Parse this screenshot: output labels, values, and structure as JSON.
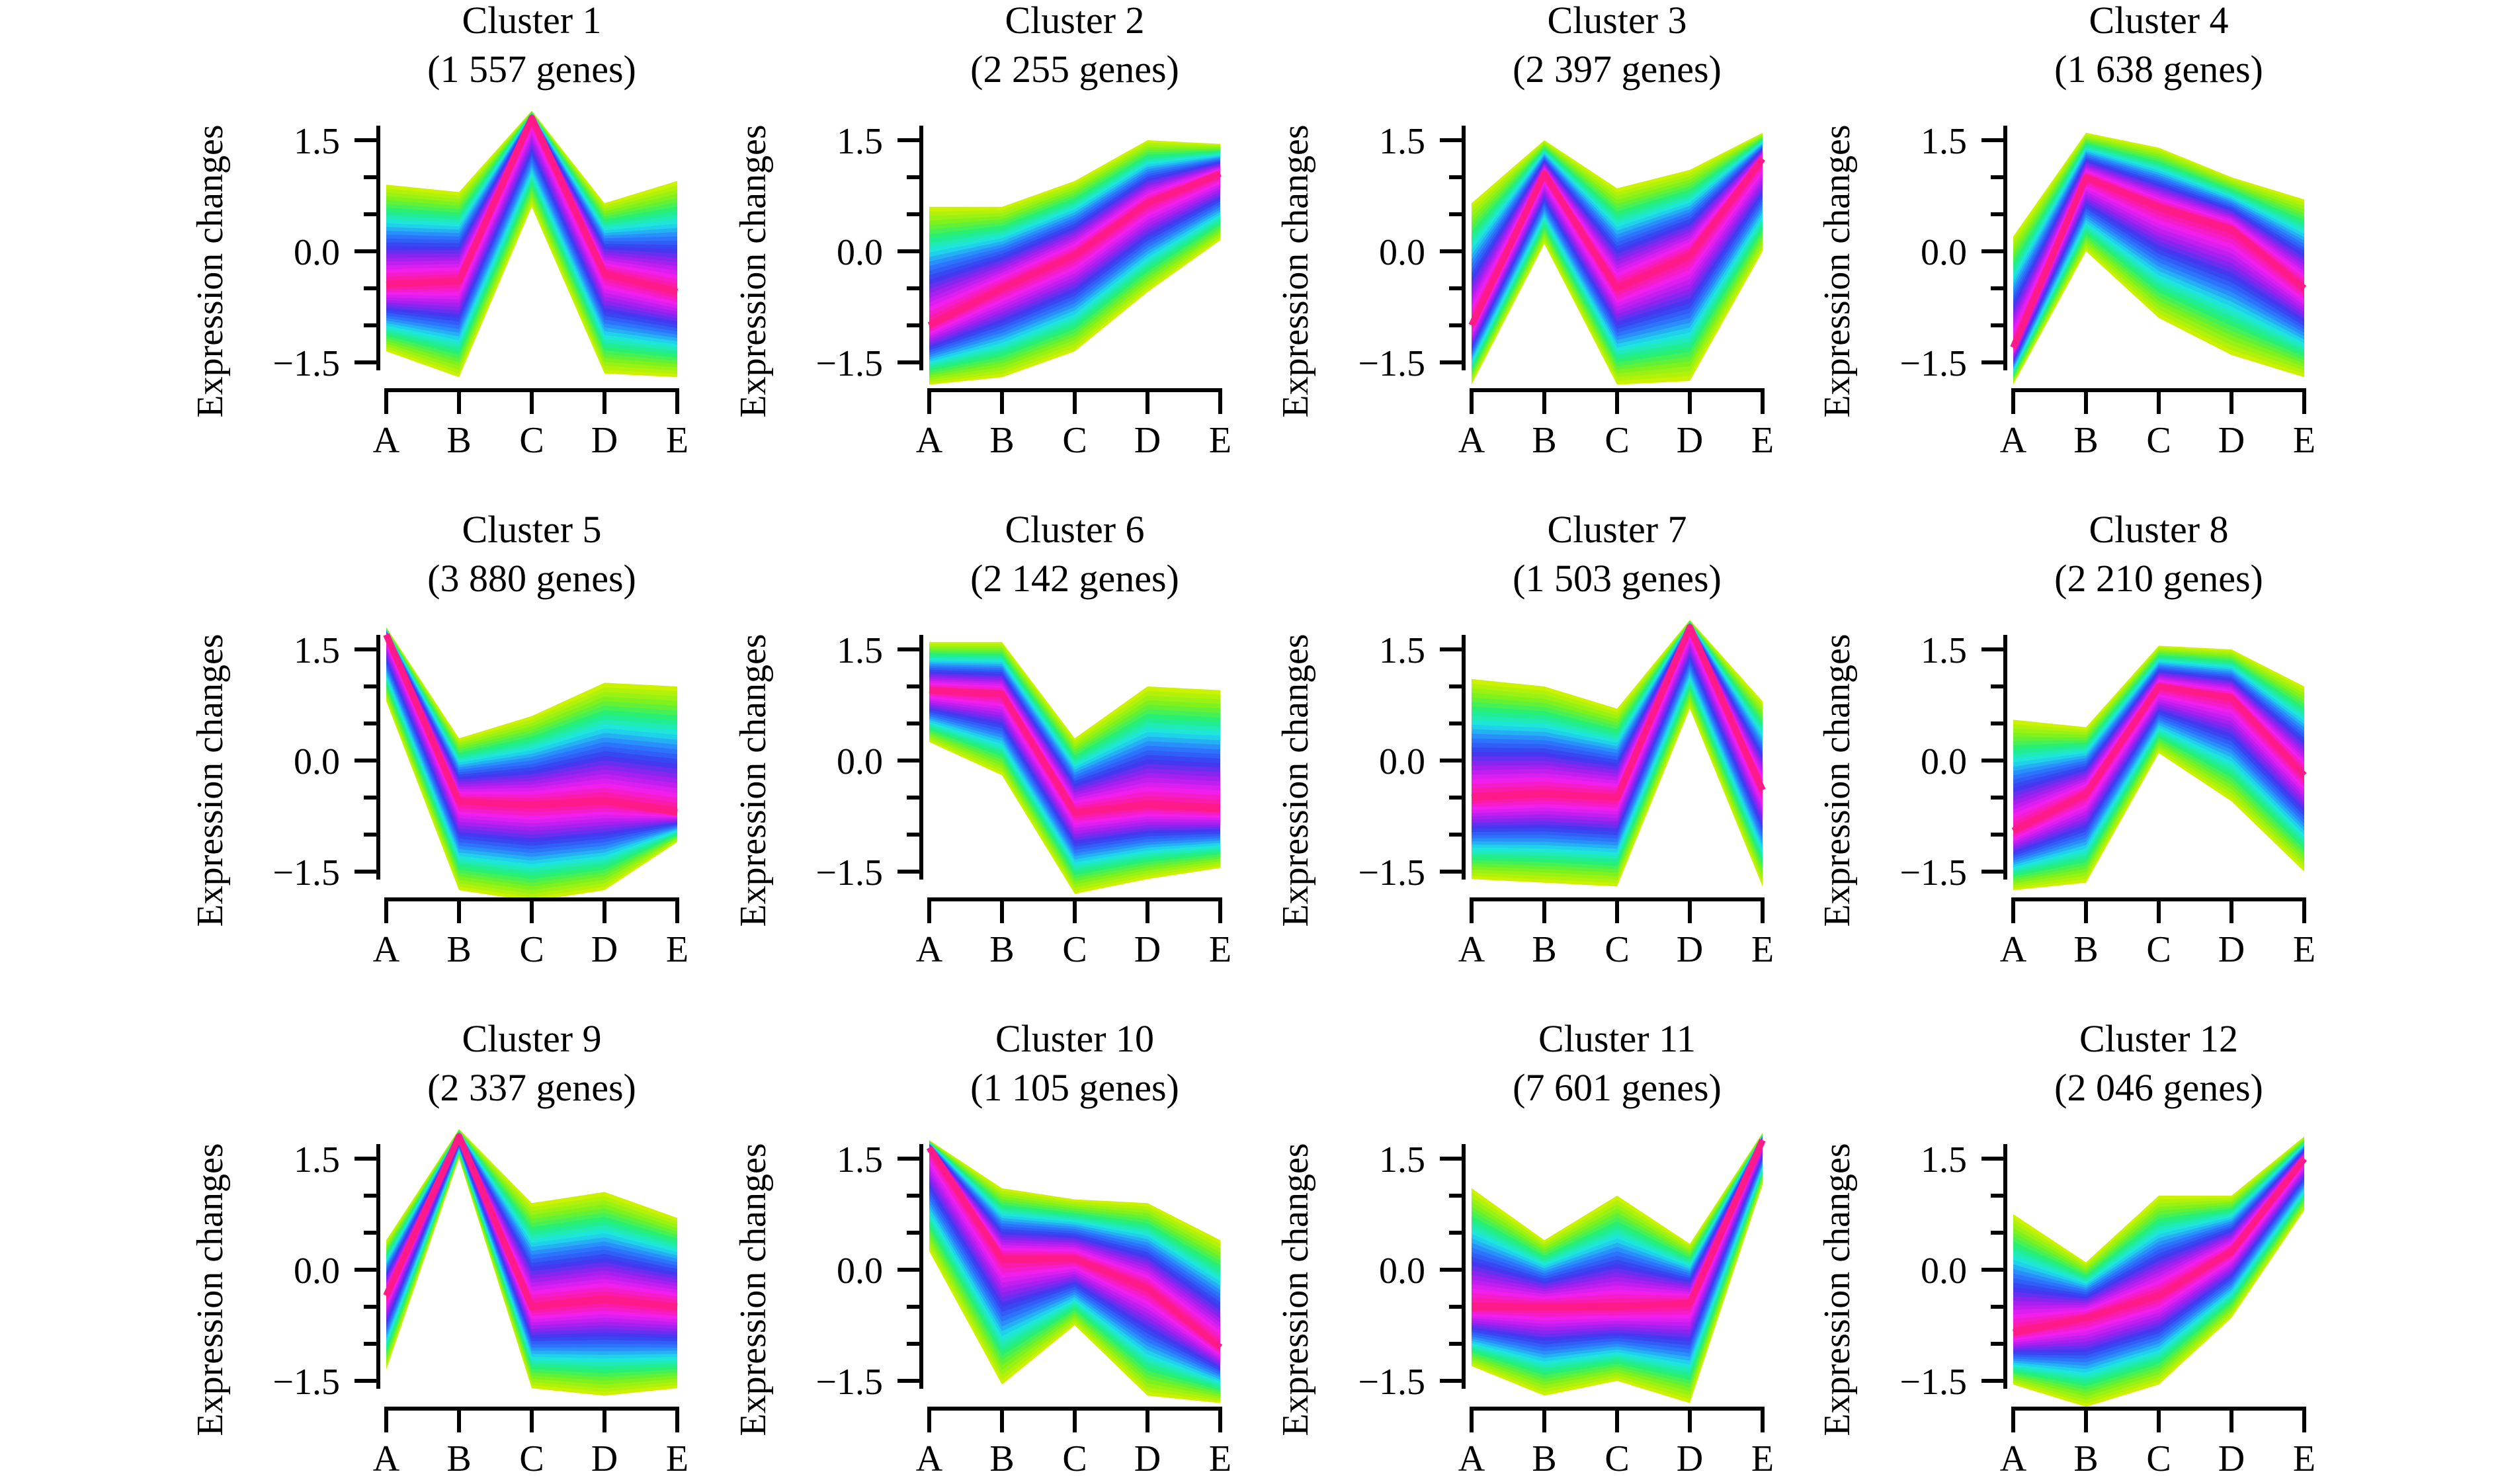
{
  "figure": {
    "ylabel": "Expression changes",
    "palette_low_to_high_membership": [
      "#ccf200",
      "#7cf21f",
      "#22f07a",
      "#1ee6e6",
      "#2a7fff",
      "#3a3af0",
      "#a020f0",
      "#f01ef0",
      "#ff1a8a"
    ]
  },
  "chart_data": [
    {
      "type": "line",
      "title": "Cluster 1",
      "subtitle": "(1 557 genes)",
      "categories": [
        "A",
        "B",
        "C",
        "D",
        "E"
      ],
      "ylim": [
        -1.5,
        1.5
      ],
      "yticks": [
        -1.5,
        0.0,
        1.5
      ],
      "ytick_labels": [
        "−1.5",
        "0.0",
        "1.5"
      ],
      "ylabel": "Expression changes",
      "series": [
        {
          "values": [
            -0.45,
            -0.4,
            1.8,
            -0.3,
            -0.55
          ]
        }
      ],
      "spread_above": [
        1.35,
        1.2,
        0.1,
        0.95,
        1.5
      ],
      "spread_below": [
        0.9,
        1.3,
        1.2,
        1.35,
        1.15
      ],
      "grid": false,
      "legend": "none"
    },
    {
      "type": "line",
      "title": "Cluster 2",
      "subtitle": "(2 255 genes)",
      "categories": [
        "A",
        "B",
        "C",
        "D",
        "E"
      ],
      "ylim": [
        -1.5,
        1.5
      ],
      "yticks": [
        -1.5,
        0.0,
        1.5
      ],
      "ytick_labels": [
        "−1.5",
        "0.0",
        "1.5"
      ],
      "ylabel": "Expression changes",
      "series": [
        {
          "values": [
            -1.0,
            -0.5,
            -0.05,
            0.65,
            1.05
          ]
        }
      ],
      "spread_above": [
        1.6,
        1.1,
        1.0,
        0.85,
        0.4
      ],
      "spread_below": [
        0.8,
        1.2,
        1.3,
        1.2,
        0.9
      ],
      "grid": false,
      "legend": "none"
    },
    {
      "type": "line",
      "title": "Cluster 3",
      "subtitle": "(2 397 genes)",
      "categories": [
        "A",
        "B",
        "C",
        "D",
        "E"
      ],
      "ylim": [
        -1.5,
        1.5
      ],
      "yticks": [
        -1.5,
        0.0,
        1.5
      ],
      "ytick_labels": [
        "−1.5",
        "0.0",
        "1.5"
      ],
      "ylabel": "Expression changes",
      "series": [
        {
          "values": [
            -1.0,
            1.05,
            -0.5,
            -0.05,
            1.25
          ]
        }
      ],
      "spread_above": [
        1.65,
        0.45,
        1.35,
        1.15,
        0.35
      ],
      "spread_below": [
        0.8,
        0.95,
        1.3,
        1.7,
        1.25
      ],
      "grid": false,
      "legend": "none"
    },
    {
      "type": "line",
      "title": "Cluster 4",
      "subtitle": "(1 638 genes)",
      "categories": [
        "A",
        "B",
        "C",
        "D",
        "E"
      ],
      "ylim": [
        -1.5,
        1.5
      ],
      "yticks": [
        -1.5,
        0.0,
        1.5
      ],
      "ytick_labels": [
        "−1.5",
        "0.0",
        "1.5"
      ],
      "ylabel": "Expression changes",
      "series": [
        {
          "values": [
            -1.3,
            1.0,
            0.6,
            0.3,
            -0.5
          ]
        }
      ],
      "spread_above": [
        1.5,
        0.6,
        0.8,
        0.7,
        1.2
      ],
      "spread_below": [
        0.5,
        1.0,
        1.5,
        1.7,
        1.2
      ],
      "grid": false,
      "legend": "none"
    },
    {
      "type": "line",
      "title": "Cluster 5",
      "subtitle": "(3 880 genes)",
      "categories": [
        "A",
        "B",
        "C",
        "D",
        "E"
      ],
      "ylim": [
        -1.5,
        1.5
      ],
      "yticks": [
        -1.5,
        0.0,
        1.5
      ],
      "ytick_labels": [
        "−1.5",
        "0.0",
        "1.5"
      ],
      "ylabel": "Expression changes",
      "series": [
        {
          "values": [
            1.7,
            -0.55,
            -0.6,
            -0.55,
            -0.7
          ]
        }
      ],
      "spread_above": [
        0.1,
        0.85,
        1.2,
        1.6,
        1.7
      ],
      "spread_below": [
        0.9,
        1.2,
        1.3,
        1.2,
        0.4
      ],
      "grid": false,
      "legend": "none"
    },
    {
      "type": "line",
      "title": "Cluster 6",
      "subtitle": "(2 142 genes)",
      "categories": [
        "A",
        "B",
        "C",
        "D",
        "E"
      ],
      "ylim": [
        -1.5,
        1.5
      ],
      "yticks": [
        -1.5,
        0.0,
        1.5
      ],
      "ytick_labels": [
        "−1.5",
        "0.0",
        "1.5"
      ],
      "ylabel": "Expression changes",
      "series": [
        {
          "values": [
            0.95,
            0.9,
            -0.7,
            -0.6,
            -0.65
          ]
        }
      ],
      "spread_above": [
        0.65,
        0.7,
        1.0,
        1.6,
        1.6
      ],
      "spread_below": [
        0.7,
        1.1,
        1.1,
        1.0,
        0.8
      ],
      "grid": false,
      "legend": "none"
    },
    {
      "type": "line",
      "title": "Cluster 7",
      "subtitle": "(1 503 genes)",
      "categories": [
        "A",
        "B",
        "C",
        "D",
        "E"
      ],
      "ylim": [
        -1.5,
        1.5
      ],
      "yticks": [
        -1.5,
        0.0,
        1.5
      ],
      "ytick_labels": [
        "−1.5",
        "0.0",
        "1.5"
      ],
      "ylabel": "Expression changes",
      "series": [
        {
          "values": [
            -0.5,
            -0.45,
            -0.5,
            1.8,
            -0.4
          ]
        }
      ],
      "spread_above": [
        1.6,
        1.45,
        1.2,
        0.1,
        1.2
      ],
      "spread_below": [
        1.1,
        1.2,
        1.2,
        1.1,
        1.3
      ],
      "grid": false,
      "legend": "none"
    },
    {
      "type": "line",
      "title": "Cluster 8",
      "subtitle": "(2 210 genes)",
      "categories": [
        "A",
        "B",
        "C",
        "D",
        "E"
      ],
      "ylim": [
        -1.5,
        1.5
      ],
      "yticks": [
        -1.5,
        0.0,
        1.5
      ],
      "ytick_labels": [
        "−1.5",
        "0.0",
        "1.5"
      ],
      "ylabel": "Expression changes",
      "series": [
        {
          "values": [
            -0.95,
            -0.45,
            1.0,
            0.85,
            -0.2
          ]
        }
      ],
      "spread_above": [
        1.5,
        0.9,
        0.55,
        0.65,
        1.2
      ],
      "spread_below": [
        0.8,
        1.2,
        0.9,
        1.4,
        1.3
      ],
      "grid": false,
      "legend": "none"
    },
    {
      "type": "line",
      "title": "Cluster 9",
      "subtitle": "(2 337 genes)",
      "categories": [
        "A",
        "B",
        "C",
        "D",
        "E"
      ],
      "ylim": [
        -1.5,
        1.5
      ],
      "yticks": [
        -1.5,
        0.0,
        1.5
      ],
      "ytick_labels": [
        "−1.5",
        "0.0",
        "1.5"
      ],
      "ylabel": "Expression changes",
      "series": [
        {
          "values": [
            -0.35,
            1.8,
            -0.5,
            -0.4,
            -0.5
          ]
        }
      ],
      "spread_above": [
        0.75,
        0.1,
        1.4,
        1.45,
        1.2
      ],
      "spread_below": [
        1.0,
        0.3,
        1.1,
        1.3,
        1.1
      ],
      "grid": false,
      "legend": "none"
    },
    {
      "type": "line",
      "title": "Cluster 10",
      "subtitle": "(1 105 genes)",
      "categories": [
        "A",
        "B",
        "C",
        "D",
        "E"
      ],
      "ylim": [
        -1.5,
        1.5
      ],
      "yticks": [
        -1.5,
        0.0,
        1.5
      ],
      "ytick_labels": [
        "−1.5",
        "0.0",
        "1.5"
      ],
      "ylabel": "Expression changes",
      "series": [
        {
          "values": [
            1.65,
            0.15,
            0.15,
            -0.25,
            -1.05
          ]
        }
      ],
      "spread_above": [
        0.1,
        0.95,
        0.8,
        1.15,
        1.45
      ],
      "spread_below": [
        1.4,
        1.7,
        0.9,
        1.45,
        0.75
      ],
      "grid": false,
      "legend": "none"
    },
    {
      "type": "line",
      "title": "Cluster 11",
      "subtitle": "(7 601 genes)",
      "categories": [
        "A",
        "B",
        "C",
        "D",
        "E"
      ],
      "ylim": [
        -1.5,
        1.5
      ],
      "yticks": [
        -1.5,
        0.0,
        1.5
      ],
      "ytick_labels": [
        "−1.5",
        "0.0",
        "1.5"
      ],
      "ylabel": "Expression changes",
      "series": [
        {
          "values": [
            -0.5,
            -0.5,
            -0.5,
            -0.45,
            1.75
          ]
        }
      ],
      "spread_above": [
        1.6,
        0.9,
        1.5,
        0.8,
        0.1
      ],
      "spread_below": [
        0.8,
        1.2,
        1.0,
        1.35,
        0.6
      ],
      "grid": false,
      "legend": "none"
    },
    {
      "type": "line",
      "title": "Cluster 12",
      "subtitle": "(2 046 genes)",
      "categories": [
        "A",
        "B",
        "C",
        "D",
        "E"
      ],
      "ylim": [
        -1.5,
        1.5
      ],
      "yticks": [
        -1.5,
        0.0,
        1.5
      ],
      "ytick_labels": [
        "−1.5",
        "0.0",
        "1.5"
      ],
      "ylabel": "Expression changes",
      "series": [
        {
          "values": [
            -0.85,
            -0.65,
            -0.35,
            0.25,
            1.5
          ]
        }
      ],
      "spread_above": [
        1.6,
        0.75,
        1.35,
        0.75,
        0.3
      ],
      "spread_below": [
        0.7,
        1.2,
        1.2,
        0.9,
        0.7
      ],
      "grid": false,
      "legend": "none"
    }
  ]
}
